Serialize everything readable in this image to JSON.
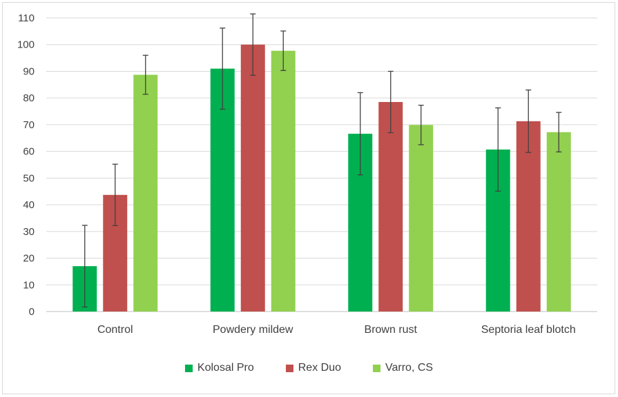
{
  "chart_data": {
    "type": "bar",
    "title": "",
    "xlabel": "",
    "ylabel": "",
    "ylim": [
      0,
      110
    ],
    "yticks": [
      0,
      10,
      20,
      30,
      40,
      50,
      60,
      70,
      80,
      90,
      100,
      110
    ],
    "categories": [
      "Control",
      "Powdery mildew",
      "Brown rust",
      "Septoria leaf blotch"
    ],
    "series": [
      {
        "name": "Kolosal Pro",
        "color": "#00b050",
        "values": [
          17,
          91,
          66.6,
          60.7
        ],
        "error": [
          15.3,
          15.2,
          15.4,
          15.6
        ]
      },
      {
        "name": "Rex Duo",
        "color": "#c0504d",
        "values": [
          43.7,
          100,
          78.5,
          71.3
        ],
        "error": [
          11.5,
          11.5,
          11.5,
          11.7
        ]
      },
      {
        "name": "Varro, CS",
        "color": "#92d050",
        "values": [
          88.7,
          97.7,
          69.9,
          67.2
        ],
        "error": [
          7.3,
          7.4,
          7.4,
          7.4
        ]
      }
    ],
    "legend_position": "bottom",
    "grid": true
  }
}
